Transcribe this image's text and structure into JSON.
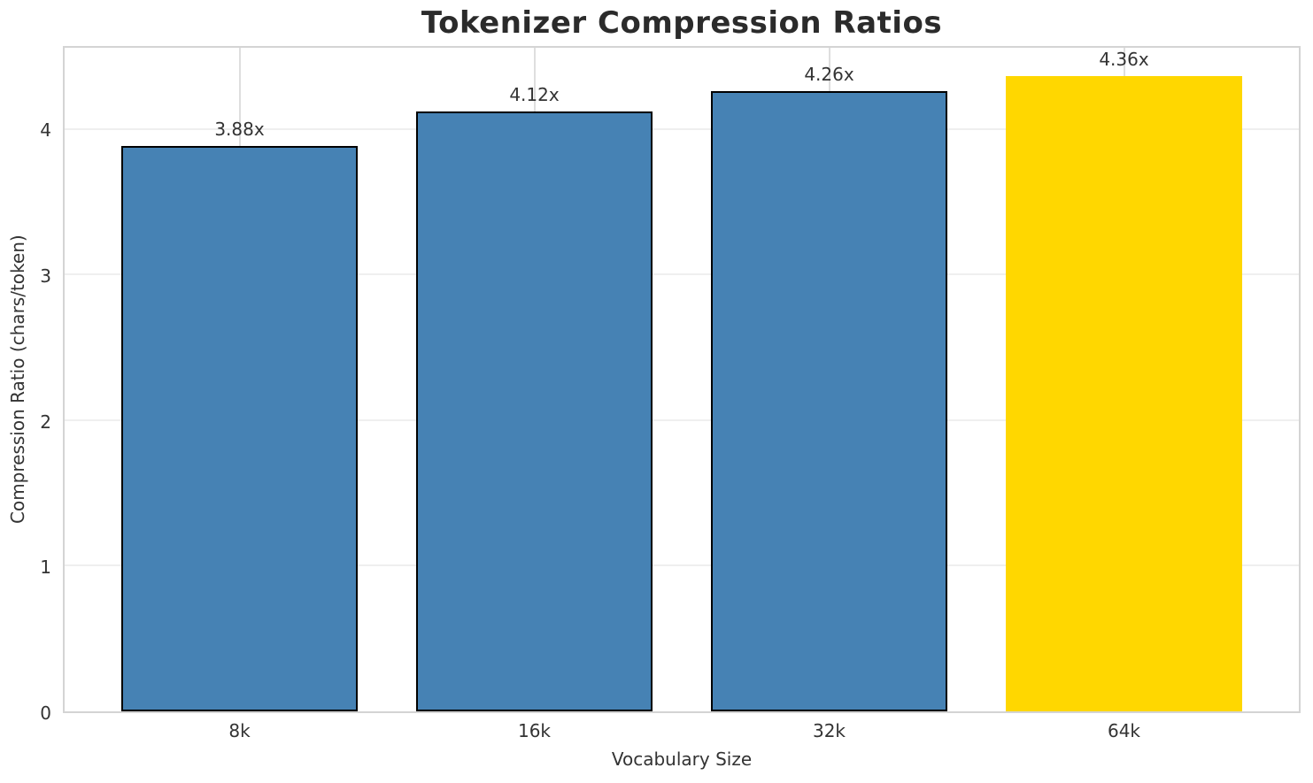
{
  "chart_data": {
    "type": "bar",
    "title": "Tokenizer Compression Ratios",
    "xlabel": "Vocabulary Size",
    "ylabel": "Compression Ratio (chars/token)",
    "categories": [
      "8k",
      "16k",
      "32k",
      "64k"
    ],
    "values": [
      3.88,
      4.12,
      4.26,
      4.36
    ],
    "bar_labels": [
      "3.88x",
      "4.12x",
      "4.26x",
      "4.36x"
    ],
    "yticks": [
      0,
      1,
      2,
      3,
      4
    ],
    "ylim": [
      0,
      4.58
    ],
    "grid": true,
    "legend": "none",
    "colors": {
      "default_bar": "#4682B4",
      "highlight_bar": "#FFD700",
      "bar_edge": "#000000",
      "grid_h": "#efefef",
      "grid_v": "#dedede",
      "spine": "#d4d4d4",
      "text": "#333333",
      "title_text": "#2b2b2b"
    },
    "bar_colors": [
      "#4682B4",
      "#4682B4",
      "#4682B4",
      "#FFD700"
    ],
    "bar_edges": [
      "#000000",
      "#000000",
      "#000000",
      "none"
    ]
  }
}
